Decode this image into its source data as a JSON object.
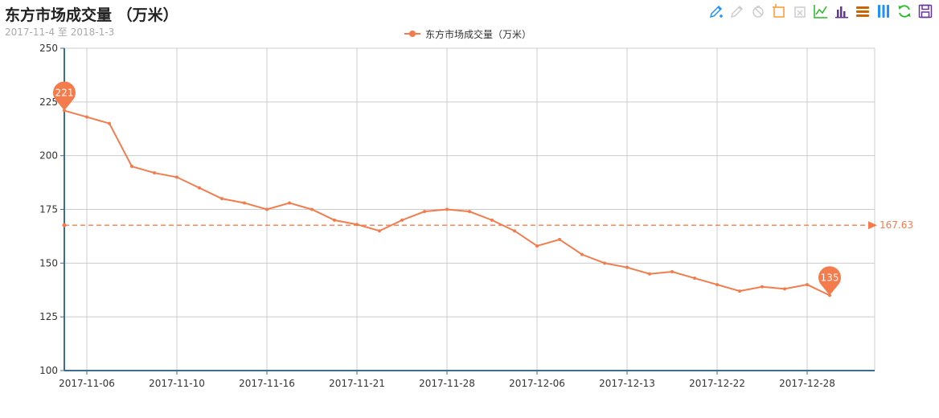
{
  "header": {
    "title": "东方市场成交量 （万米）",
    "subtitle": "2017-11-4 至 2018-1-3"
  },
  "toolbox": {
    "items": [
      {
        "name": "mark-icon",
        "color": "#1e90ff"
      },
      {
        "name": "mark-undo-icon",
        "color": "#cccccc"
      },
      {
        "name": "mark-clear-icon",
        "color": "#cccccc"
      },
      {
        "name": "data-zoom-icon",
        "color": "#ff9933"
      },
      {
        "name": "data-zoom-reset-icon",
        "color": "#cccccc"
      },
      {
        "name": "line-chart-icon",
        "color": "#22bb22"
      },
      {
        "name": "bar-chart-icon",
        "color": "#663399"
      },
      {
        "name": "stack-icon",
        "color": "#cc6600"
      },
      {
        "name": "tiled-icon",
        "color": "#1e90ff"
      },
      {
        "name": "restore-icon",
        "color": "#22bb22"
      },
      {
        "name": "save-image-icon",
        "color": "#663399"
      }
    ]
  },
  "chart_data": {
    "type": "line",
    "title": "东方市场成交量 （万米）",
    "subtitle": "2017-11-4 至 2018-1-3",
    "xlabel": "",
    "ylabel": "",
    "ylim": [
      100,
      250
    ],
    "yticks": [
      100,
      125,
      150,
      175,
      200,
      225,
      250
    ],
    "x_tick_labels": [
      "2017-11-06",
      "2017-11-10",
      "2017-11-16",
      "2017-11-21",
      "2017-11-28",
      "2017-12-06",
      "2017-12-13",
      "2017-12-22",
      "2017-12-28"
    ],
    "x_tick_positions": [
      1,
      5,
      9,
      13,
      17,
      21,
      25,
      29,
      33
    ],
    "x_count": 37,
    "grid": true,
    "legend": "top-center",
    "color": "#f47c4c",
    "series": [
      {
        "name": "东方市场成交量（万米）",
        "values": [
          221,
          218,
          215,
          195,
          192,
          190,
          185,
          180,
          178,
          175,
          178,
          175,
          170,
          168,
          165,
          170,
          174,
          175,
          174,
          170,
          165,
          158,
          161,
          154,
          150,
          148,
          145,
          146,
          143,
          140,
          137,
          139,
          138,
          140,
          135
        ]
      }
    ],
    "markPoints": [
      {
        "label": "221",
        "value": 221,
        "index": 0
      },
      {
        "label": "135",
        "value": 135,
        "index": 34
      }
    ],
    "markLine": {
      "label": "167.63",
      "value": 167.63
    }
  }
}
